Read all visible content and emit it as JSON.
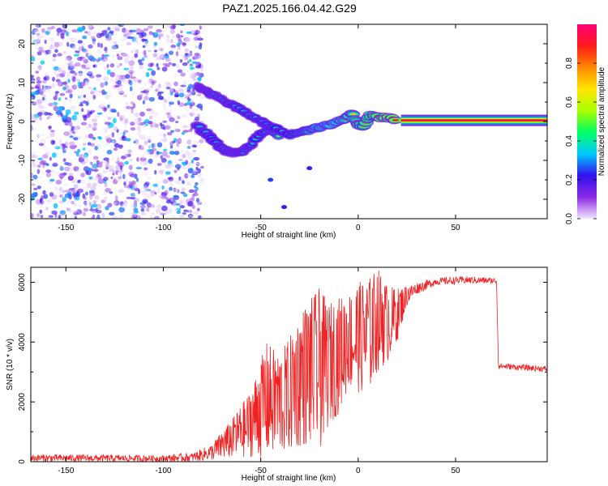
{
  "title": "PAZ1.2025.166.04.42.G29",
  "chart_data": [
    {
      "type": "heatmap",
      "xlabel": "Height of straight line (km)",
      "ylabel": "Frequency (Hz)",
      "xlim": [
        -168,
        97
      ],
      "ylim": [
        -25,
        25
      ],
      "xticks": [
        -150,
        -100,
        -50,
        0,
        50
      ],
      "yticks": [
        -20,
        -10,
        0,
        10,
        20
      ],
      "colorbar": {
        "label": "Normalized spectral amplitude",
        "range": [
          0.0,
          1.0
        ],
        "ticks": [
          0.0,
          0.2,
          0.4,
          0.6,
          0.8
        ],
        "tick_labels": [
          "0.0",
          "0.2",
          "0.4",
          "0.6",
          "0.8"
        ],
        "colormap": [
          "#f2e6ff",
          "#8a2be2",
          "#3311ee",
          "#00c8ff",
          "#00ff66",
          "#aaff00",
          "#ffe600",
          "#ff8800",
          "#ff1a1a",
          "#ff0077"
        ]
      },
      "noise_region_x": [
        -168,
        -80
      ],
      "noise_amplitude": [
        0.0,
        0.35
      ],
      "main_ridge": [
        {
          "x": -82,
          "y": 9,
          "amp": 0.25
        },
        {
          "x": -75,
          "y": 7,
          "amp": 0.3
        },
        {
          "x": -68,
          "y": 5,
          "amp": 0.3
        },
        {
          "x": -62,
          "y": 3.5,
          "amp": 0.35
        },
        {
          "x": -55,
          "y": 1.5,
          "amp": 0.35
        },
        {
          "x": -48,
          "y": -0.5,
          "amp": 0.35
        },
        {
          "x": -42,
          "y": -2,
          "amp": 0.4
        },
        {
          "x": -36,
          "y": -3.5,
          "amp": 0.4
        },
        {
          "x": -30,
          "y": -3,
          "amp": 0.45
        },
        {
          "x": -25,
          "y": -2,
          "amp": 0.5
        },
        {
          "x": -20,
          "y": -1.5,
          "amp": 0.55
        },
        {
          "x": -15,
          "y": -1,
          "amp": 0.6
        },
        {
          "x": -10,
          "y": 0,
          "amp": 0.6
        },
        {
          "x": -6,
          "y": 1,
          "amp": 0.7
        },
        {
          "x": -3,
          "y": 2,
          "amp": 0.7
        },
        {
          "x": 0,
          "y": -1,
          "amp": 0.75
        },
        {
          "x": 3,
          "y": -1,
          "amp": 0.75
        },
        {
          "x": 6,
          "y": 1.5,
          "amp": 0.8
        },
        {
          "x": 10,
          "y": 1,
          "amp": 0.85
        },
        {
          "x": 15,
          "y": 1,
          "amp": 0.9
        },
        {
          "x": 20,
          "y": 0.5,
          "amp": 0.9
        }
      ],
      "secondary_ridge": [
        {
          "x": -83,
          "y": -1,
          "amp": 0.3
        },
        {
          "x": -78,
          "y": -3,
          "amp": 0.35
        },
        {
          "x": -74,
          "y": -5,
          "amp": 0.4
        },
        {
          "x": -70,
          "y": -7,
          "amp": 0.35
        },
        {
          "x": -65,
          "y": -8,
          "amp": 0.3
        },
        {
          "x": -60,
          "y": -8,
          "amp": 0.3
        },
        {
          "x": -55,
          "y": -6,
          "amp": 0.35
        },
        {
          "x": -50,
          "y": -3,
          "amp": 0.4
        },
        {
          "x": -45,
          "y": -2,
          "amp": 0.45
        },
        {
          "x": -40,
          "y": -4,
          "amp": 0.5
        }
      ],
      "stray_blobs": [
        {
          "x": -45,
          "y": -15,
          "amp": 0.25
        },
        {
          "x": -38,
          "y": -22,
          "amp": 0.2
        },
        {
          "x": -25,
          "y": -12,
          "amp": 0.2
        }
      ],
      "steady_band": {
        "x_from": 22,
        "x_to": 97,
        "y": 0.3,
        "amp": 0.95
      }
    },
    {
      "type": "line",
      "xlabel": "Height of straight line (km)",
      "ylabel": "SNR (10 * v/v)",
      "xlim": [
        -168,
        97
      ],
      "ylim": [
        0,
        6500
      ],
      "xticks": [
        -150,
        -100,
        -50,
        0,
        50
      ],
      "yticks": [
        0,
        2000,
        4000,
        6000
      ],
      "color": "#ee2222",
      "envelope": [
        {
          "x": -168,
          "low": 0,
          "high": 250
        },
        {
          "x": -100,
          "low": 0,
          "high": 220
        },
        {
          "x": -85,
          "low": 0,
          "high": 300
        },
        {
          "x": -75,
          "low": 50,
          "high": 600
        },
        {
          "x": -65,
          "low": 100,
          "high": 1400
        },
        {
          "x": -55,
          "low": 150,
          "high": 2400
        },
        {
          "x": -47,
          "low": 100,
          "high": 4000
        },
        {
          "x": -40,
          "low": 200,
          "high": 3600
        },
        {
          "x": -35,
          "low": 300,
          "high": 4200
        },
        {
          "x": -28,
          "low": 500,
          "high": 5200
        },
        {
          "x": -20,
          "low": 300,
          "high": 5800
        },
        {
          "x": -15,
          "low": 1200,
          "high": 5300
        },
        {
          "x": -10,
          "low": 1600,
          "high": 5500
        },
        {
          "x": -5,
          "low": 2400,
          "high": 5600
        },
        {
          "x": 0,
          "low": 2300,
          "high": 6000
        },
        {
          "x": 5,
          "low": 2200,
          "high": 6100
        },
        {
          "x": 10,
          "low": 3000,
          "high": 6500
        },
        {
          "x": 15,
          "low": 3300,
          "high": 5900
        },
        {
          "x": 20,
          "low": 4000,
          "high": 5800
        },
        {
          "x": 25,
          "low": 5200,
          "high": 5900
        },
        {
          "x": 30,
          "low": 5600,
          "high": 6000
        },
        {
          "x": 40,
          "low": 5900,
          "high": 6150
        },
        {
          "x": 55,
          "low": 5950,
          "high": 6200
        },
        {
          "x": 71,
          "low": 5950,
          "high": 6150
        },
        {
          "x": 72,
          "low": 3100,
          "high": 3300
        },
        {
          "x": 97,
          "low": 3000,
          "high": 3200
        }
      ]
    }
  ]
}
